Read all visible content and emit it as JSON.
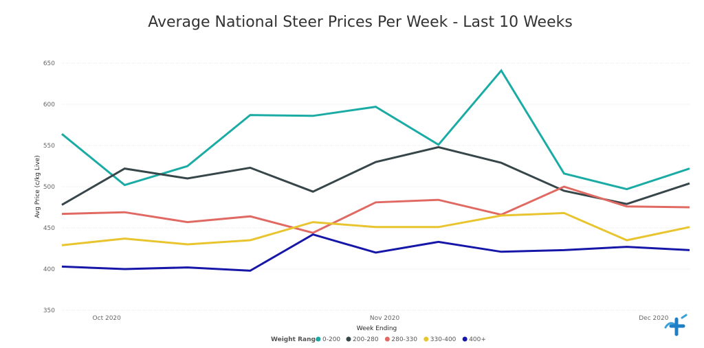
{
  "chart_data": {
    "type": "line",
    "title": "Average National Steer Prices Per Week - Last 10 Weeks",
    "xlabel": "Week Ending",
    "ylabel": "Avg Price (c/kg Live)",
    "ylim": [
      350,
      650
    ],
    "yticks": [
      350,
      400,
      450,
      500,
      550,
      600,
      650
    ],
    "x": [
      "2020-09-26",
      "2020-10-03",
      "2020-10-10",
      "2020-10-17",
      "2020-10-24",
      "2020-10-31",
      "2020-11-07",
      "2020-11-14",
      "2020-11-21",
      "2020-11-28",
      "2020-12-05"
    ],
    "xticks": [
      {
        "date": "2020-10-01",
        "label": "Oct 2020"
      },
      {
        "date": "2020-11-01",
        "label": "Nov 2020"
      },
      {
        "date": "2020-12-01",
        "label": "Dec 2020"
      }
    ],
    "grid": "horizontal",
    "legend_placement": "bottom",
    "legend_title": "Weight Range",
    "series": [
      {
        "name": "0-200",
        "color": "#1aaba5",
        "values": [
          564,
          502,
          525,
          587,
          586,
          597,
          551,
          641,
          516,
          497,
          522
        ]
      },
      {
        "name": "200-280",
        "color": "#374649",
        "values": [
          478,
          522,
          510,
          523,
          494,
          530,
          548,
          529,
          495,
          479,
          504
        ]
      },
      {
        "name": "280-330",
        "color": "#e06a63",
        "values": [
          467,
          469,
          457,
          464,
          444,
          481,
          484,
          466,
          500,
          476,
          475
        ]
      },
      {
        "name": "330-400",
        "color": "#e8c42e",
        "values": [
          429,
          437,
          430,
          435,
          457,
          451,
          451,
          465,
          468,
          435,
          451
        ]
      },
      {
        "name": "400+",
        "color": "#1616a8",
        "values": [
          403,
          400,
          402,
          398,
          442,
          420,
          433,
          421,
          423,
          427,
          423
        ]
      }
    ]
  }
}
